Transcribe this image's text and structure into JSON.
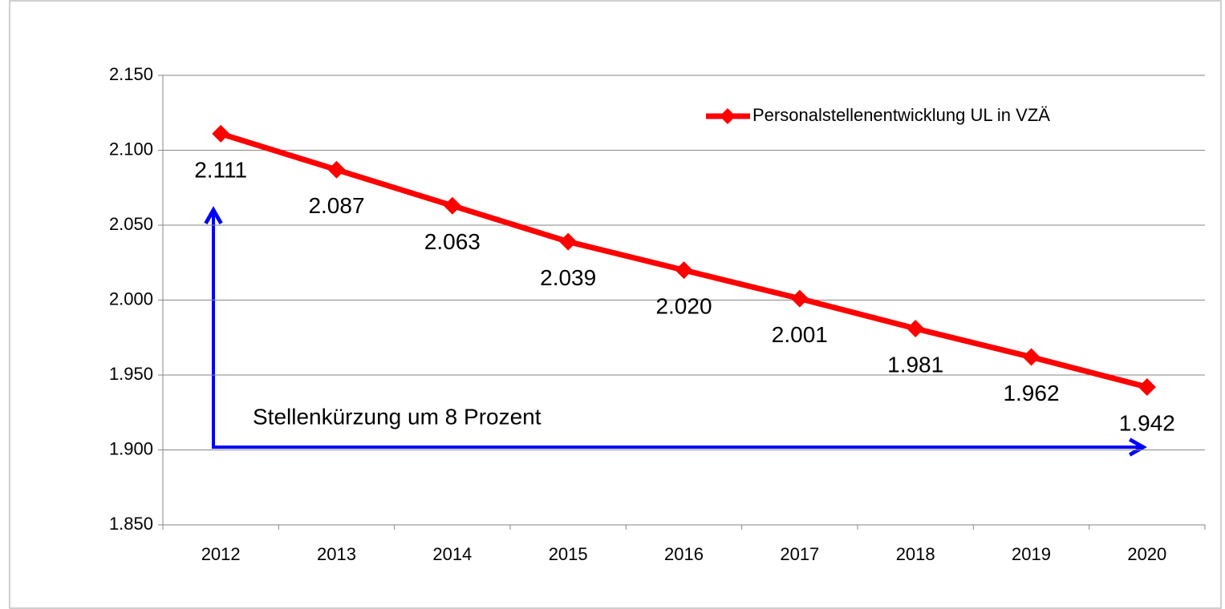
{
  "chart_data": {
    "type": "line",
    "categories": [
      "2012",
      "2013",
      "2014",
      "2015",
      "2016",
      "2017",
      "2018",
      "2019",
      "2020"
    ],
    "series": [
      {
        "name": "Personalstellenentwicklung UL in VZÄ",
        "color": "#ff0000",
        "values": [
          2111,
          2087,
          2063,
          2039,
          2020,
          2001,
          1981,
          1962,
          1942
        ],
        "value_labels": [
          "2.111",
          "2.087",
          "2.063",
          "2.039",
          "2.020",
          "2.001",
          "1.981",
          "1.962",
          "1.942"
        ]
      }
    ],
    "ylim": [
      1850,
      2150
    ],
    "yticks": [
      {
        "value": 1850,
        "label": "1.850"
      },
      {
        "value": 1900,
        "label": "1.900"
      },
      {
        "value": 1950,
        "label": "1.950"
      },
      {
        "value": 2000,
        "label": "2.000"
      },
      {
        "value": 2050,
        "label": "2.050"
      },
      {
        "value": 2100,
        "label": "2.100"
      },
      {
        "value": 2150,
        "label": "2.150"
      }
    ],
    "grid": true,
    "legend": "top-right",
    "annotation": "Stellenkürzung um 8 Prozent"
  }
}
